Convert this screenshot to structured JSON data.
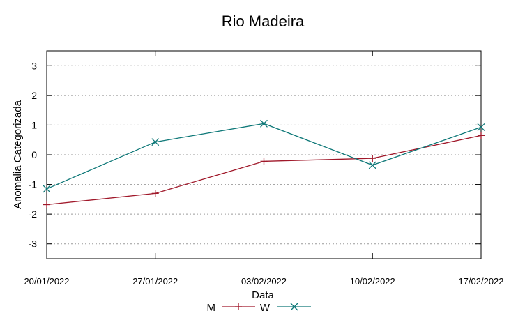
{
  "chart_data": {
    "type": "line",
    "title": "Rio Madeira",
    "xlabel": "Data",
    "ylabel": "Anomalia Categorizada",
    "categories": [
      "20/01/2022",
      "27/01/2022",
      "03/02/2022",
      "10/02/2022",
      "17/02/2022"
    ],
    "ylim": [
      -3.5,
      3.5
    ],
    "yticks": [
      -3,
      -2,
      -1,
      0,
      1,
      2,
      3
    ],
    "grid": true,
    "legend_position": "bottom",
    "series": [
      {
        "name": "M",
        "color": "#a0182a",
        "marker": "plus",
        "values": [
          -1.68,
          -1.3,
          -0.22,
          -0.12,
          0.65
        ]
      },
      {
        "name": "W",
        "color": "#0e7878",
        "marker": "cross",
        "values": [
          -1.15,
          0.43,
          1.05,
          -0.35,
          0.93
        ]
      }
    ]
  }
}
